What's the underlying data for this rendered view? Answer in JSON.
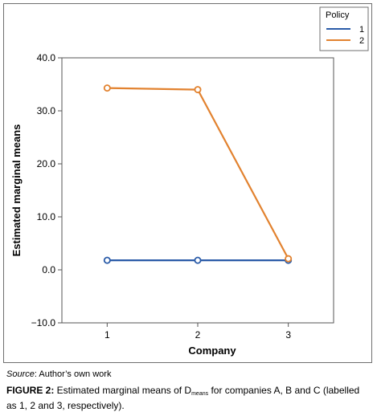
{
  "chart_data": {
    "type": "line",
    "xlabel": "Company",
    "ylabel": "Estimated marginal means",
    "categories": [
      "1",
      "2",
      "3"
    ],
    "ylim": [
      -10,
      40
    ],
    "yticks": [
      "−10.0",
      "0.0",
      "10.0",
      "20.0",
      "30.0",
      "40.0"
    ],
    "ytick_values": [
      -10,
      0,
      10,
      20,
      30,
      40
    ],
    "grid": false,
    "legend": {
      "title": "Policy",
      "placement": "top-right"
    },
    "series": [
      {
        "name": "1",
        "color": "#2a5ba8",
        "values": [
          1.8,
          1.8,
          1.8
        ]
      },
      {
        "name": "2",
        "color": "#e2822f",
        "values": [
          34.3,
          34.0,
          2.1
        ]
      }
    ]
  },
  "source": {
    "label": "Source",
    "text": ": Author’s own work"
  },
  "caption": {
    "label": "FIGURE 2:",
    "text_before": " Estimated marginal means of D",
    "subscript": "means",
    "text_after": " for companies A, B and C (labelled as 1, 2 and 3, respectively)."
  }
}
